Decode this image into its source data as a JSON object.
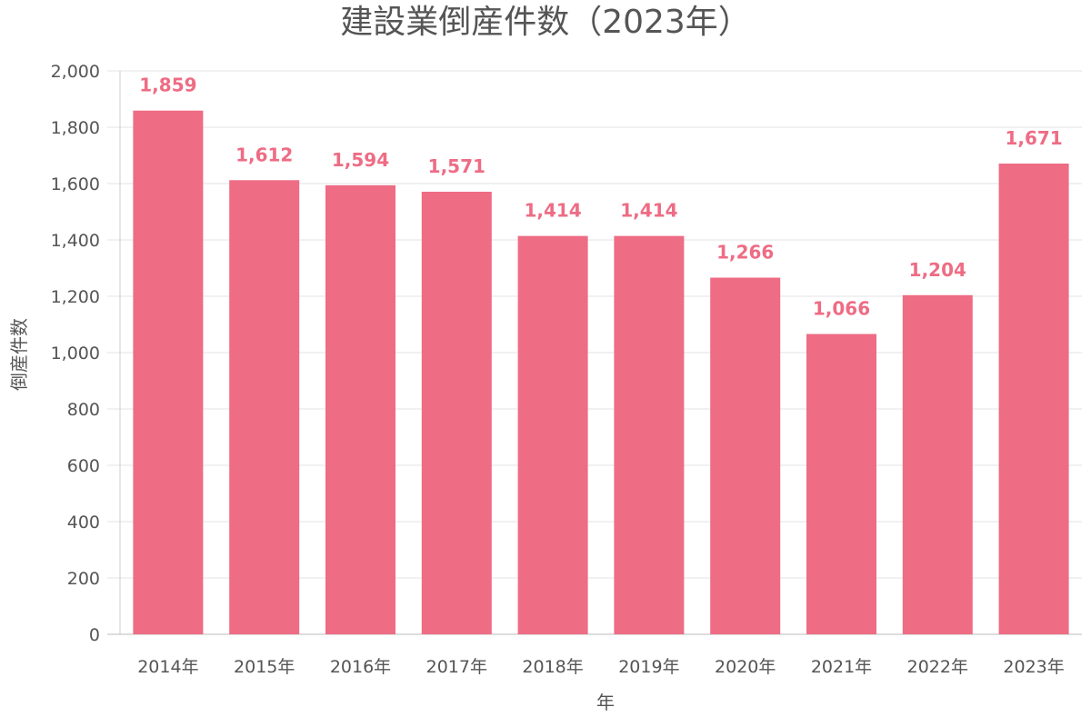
{
  "chart_data": {
    "type": "bar",
    "title": "建設業倒産件数（2023年）",
    "xlabel": "年",
    "ylabel": "倒産件数",
    "categories": [
      "2014年",
      "2015年",
      "2016年",
      "2017年",
      "2018年",
      "2019年",
      "2020年",
      "2021年",
      "2022年",
      "2023年"
    ],
    "values": [
      1859,
      1612,
      1594,
      1571,
      1414,
      1414,
      1266,
      1066,
      1204,
      1671
    ],
    "value_labels": [
      "1,859",
      "1,612",
      "1,594",
      "1,571",
      "1,414",
      "1,414",
      "1,266",
      "1,066",
      "1,204",
      "1,671"
    ],
    "ylim": [
      0,
      2000
    ],
    "y_ticks": [
      0,
      200,
      400,
      600,
      800,
      1000,
      1200,
      1400,
      1600,
      1800,
      2000
    ],
    "y_tick_labels": [
      "0",
      "200",
      "400",
      "600",
      "800",
      "1,000",
      "1,200",
      "1,400",
      "1,600",
      "1,800",
      "2,000"
    ],
    "grid": true,
    "legend": "none",
    "bar_color": "#ee6c84",
    "label_color": "#ee6c84"
  }
}
